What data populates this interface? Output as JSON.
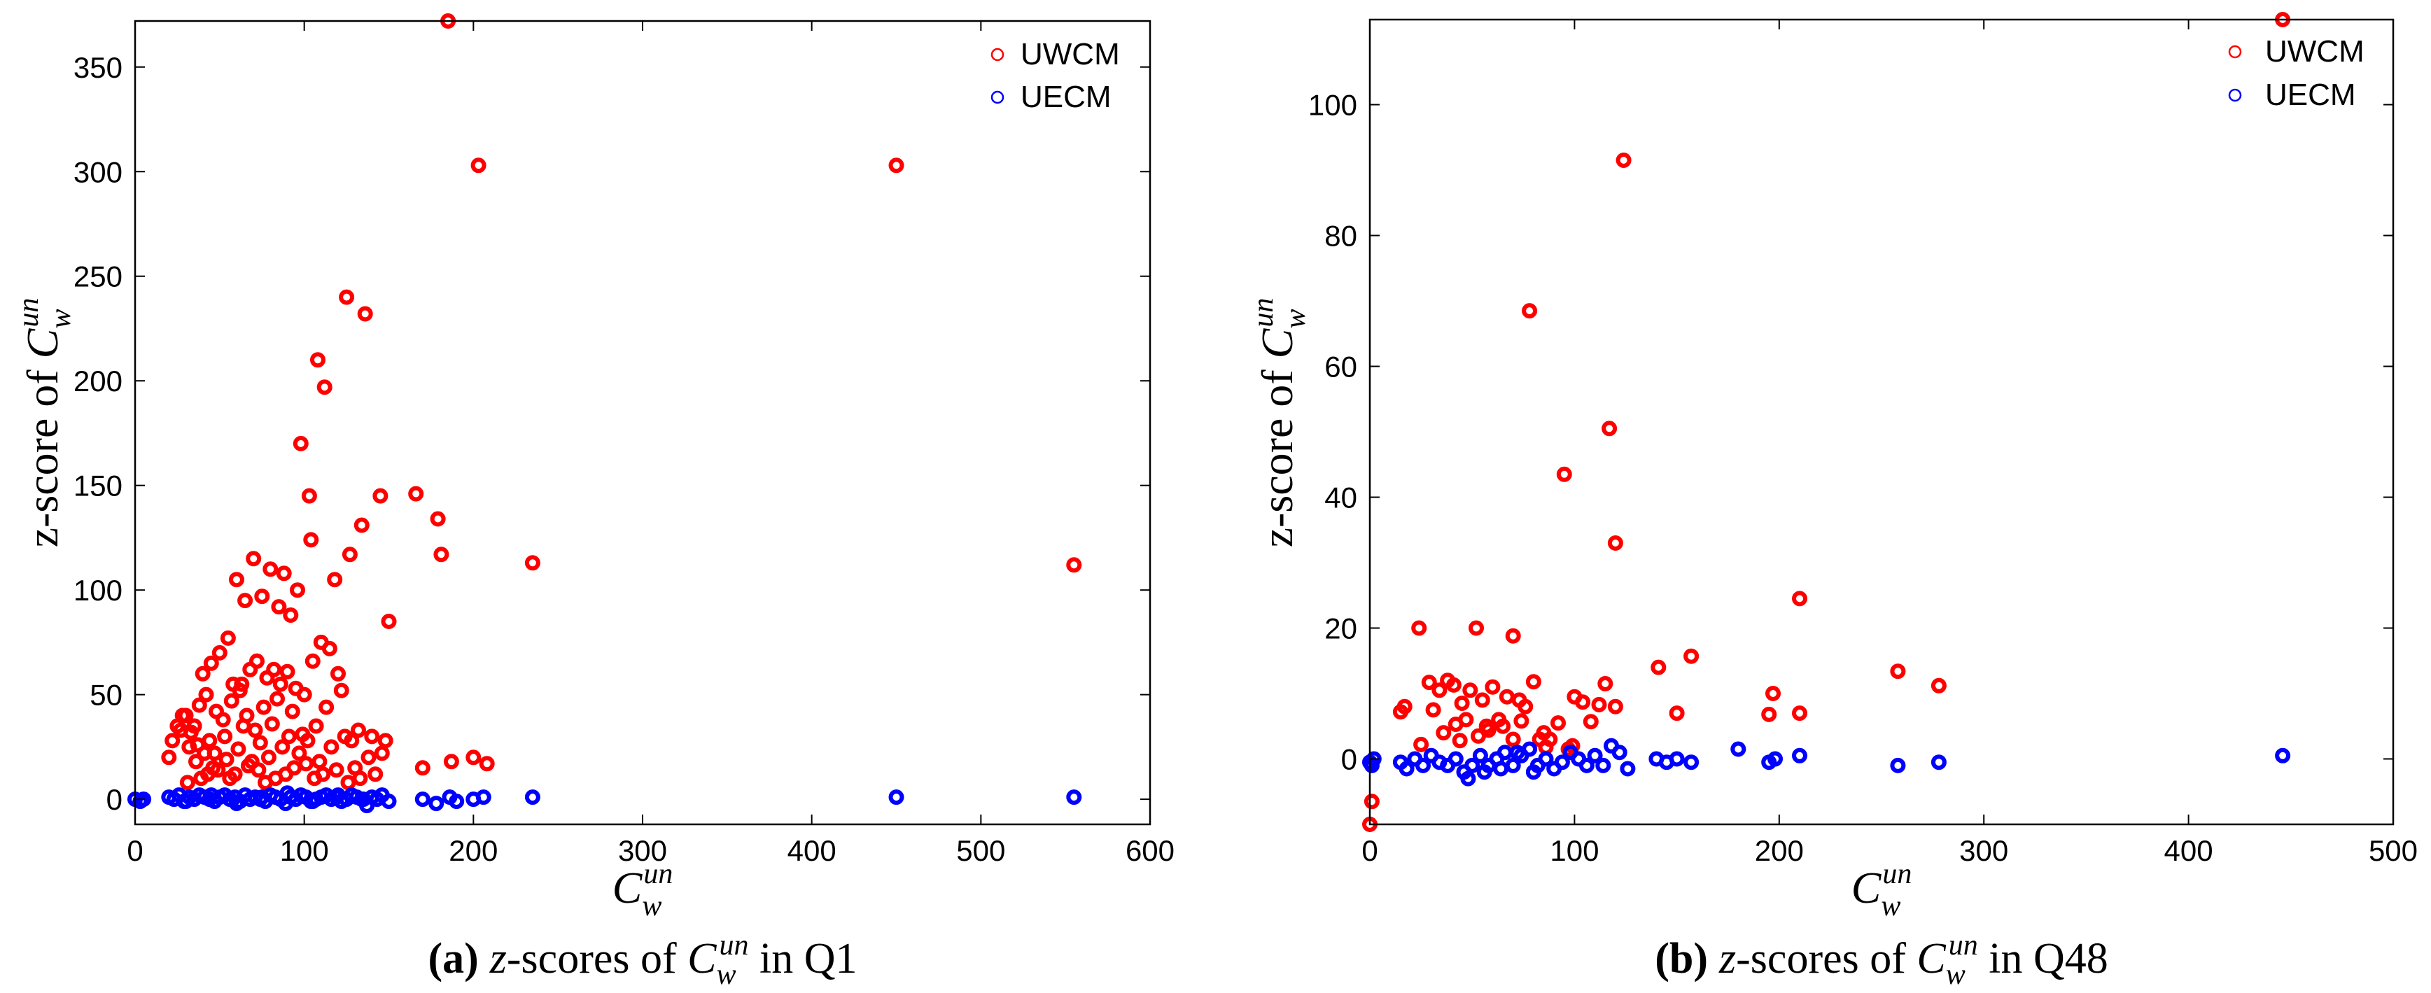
{
  "colors": {
    "uwcm": "#ff0000",
    "uecm": "#0000ff",
    "axis": "#000000"
  },
  "chart_data": [
    {
      "type": "scatter",
      "xlabel_base": "C",
      "xlabel_sub": "w",
      "xlabel_sup": "un",
      "ylabel_prefix": "z-score of ",
      "ylabel_base": "C",
      "ylabel_sub": "w",
      "ylabel_sup": "un",
      "caption_tag": "(a)",
      "caption_z": "z",
      "caption_mid": "-scores of ",
      "caption_base": "C",
      "caption_sub": "w",
      "caption_sup": "un",
      "caption_tail": " in Q1",
      "xlim": [
        0,
        600
      ],
      "ylim": [
        -12,
        372
      ],
      "xticks": [
        0,
        100,
        200,
        300,
        400,
        500,
        600
      ],
      "yticks": [
        0,
        50,
        100,
        150,
        200,
        250,
        300,
        350
      ],
      "legend": [
        "UWCM",
        "UECM"
      ],
      "series": [
        {
          "name": "UWCM",
          "x": [
            185,
            203,
            450,
            125,
            136,
            108,
            112,
            98,
            103,
            166,
            145,
            179,
            134,
            181,
            235,
            555,
            150,
            70,
            80,
            88,
            96,
            118,
            127,
            60,
            104,
            75,
            65,
            85,
            92,
            110,
            55,
            40,
            45,
            50,
            58,
            62,
            68,
            72,
            78,
            82,
            86,
            90,
            95,
            100,
            105,
            115,
            120,
            30,
            35,
            38,
            42,
            48,
            52,
            57,
            63,
            66,
            71,
            76,
            81,
            84,
            93,
            99,
            107,
            113,
            122,
            128,
            132,
            140,
            146,
            25,
            28,
            33,
            37,
            44,
            47,
            53,
            61,
            64,
            69,
            74,
            79,
            87,
            91,
            97,
            102,
            109,
            116,
            124,
            130,
            138,
            148,
            170,
            187,
            200,
            208,
            20,
            22,
            27,
            32,
            36,
            41,
            46,
            54,
            59,
            67,
            73,
            83,
            89,
            94,
            101,
            106,
            111,
            119,
            126,
            133,
            142,
            31,
            39,
            43,
            49,
            56,
            77
          ],
          "y": [
            372,
            303,
            303,
            240,
            232,
            210,
            197,
            170,
            145,
            146,
            145,
            134,
            131,
            117,
            113,
            112,
            85,
            115,
            110,
            108,
            100,
            105,
            117,
            105,
            124,
            97,
            95,
            92,
            88,
            75,
            77,
            60,
            65,
            70,
            55,
            52,
            62,
            66,
            58,
            62,
            55,
            61,
            53,
            50,
            66,
            72,
            60,
            40,
            35,
            45,
            50,
            42,
            38,
            47,
            55,
            40,
            33,
            44,
            36,
            48,
            42,
            31,
            35,
            44,
            52,
            28,
            33,
            30,
            22,
            35,
            40,
            32,
            26,
            28,
            22,
            30,
            24,
            35,
            18,
            27,
            20,
            25,
            30,
            22,
            28,
            18,
            25,
            30,
            15,
            20,
            28,
            15,
            18,
            20,
            17,
            20,
            28,
            33,
            25,
            18,
            22,
            15,
            19,
            12,
            16,
            14,
            10,
            12,
            15,
            17,
            10,
            12,
            14,
            8,
            10,
            12,
            8,
            10,
            12,
            14,
            10,
            8
          ]
        },
        {
          "name": "UECM",
          "x": [
            0,
            3,
            5,
            20,
            23,
            26,
            29,
            32,
            35,
            38,
            41,
            44,
            47,
            50,
            53,
            56,
            59,
            62,
            65,
            68,
            71,
            74,
            77,
            80,
            83,
            86,
            89,
            92,
            95,
            98,
            101,
            104,
            107,
            110,
            113,
            116,
            119,
            122,
            125,
            128,
            131,
            134,
            137,
            140,
            143,
            146,
            150,
            170,
            178,
            186,
            190,
            200,
            206,
            235,
            450,
            555,
            30,
            45,
            60,
            75,
            90,
            105,
            120,
            135
          ],
          "y": [
            0,
            -1,
            0,
            1,
            0,
            2,
            -1,
            1,
            0,
            2,
            1,
            0,
            -1,
            1,
            2,
            0,
            1,
            -1,
            2,
            0,
            1,
            0,
            -1,
            2,
            1,
            0,
            -2,
            1,
            0,
            2,
            1,
            -1,
            0,
            1,
            2,
            0,
            1,
            -1,
            0,
            2,
            1,
            0,
            -3,
            1,
            0,
            2,
            -1,
            0,
            -2,
            1,
            -1,
            0,
            1,
            1,
            1,
            1,
            -1,
            2,
            -2,
            1,
            3,
            -1,
            2,
            0
          ]
        }
      ]
    },
    {
      "type": "scatter",
      "xlabel_base": "C",
      "xlabel_sub": "w",
      "xlabel_sup": "un",
      "ylabel_prefix": "z-score of ",
      "ylabel_base": "C",
      "ylabel_sub": "w",
      "ylabel_sup": "un",
      "caption_tag": "(b)",
      "caption_z": "z",
      "caption_mid": "-scores of ",
      "caption_base": "C",
      "caption_sub": "w",
      "caption_sup": "un",
      "caption_tail": " in Q48",
      "xlim": [
        0,
        500
      ],
      "ylim": [
        -10,
        113
      ],
      "xticks": [
        0,
        100,
        200,
        300,
        400,
        500
      ],
      "yticks": [
        0,
        20,
        40,
        60,
        80,
        100
      ],
      "legend": [
        "UWCM",
        "UECM"
      ],
      "series": [
        {
          "name": "UWCM",
          "x": [
            446,
            124,
            78,
            117,
            95,
            120,
            210,
            24,
            52,
            70,
            157,
            258,
            278,
            100,
            141,
            197,
            112,
            150,
            210,
            195,
            17,
            15,
            29,
            34,
            38,
            41,
            45,
            49,
            55,
            60,
            63,
            67,
            73,
            76,
            80,
            85,
            88,
            92,
            104,
            108,
            115,
            120,
            31,
            36,
            42,
            47,
            53,
            57,
            65,
            70,
            83,
            97,
            99,
            0,
            1,
            25,
            44,
            58,
            74,
            86
          ],
          "y": [
            113,
            91.5,
            68.5,
            50.5,
            43.5,
            33,
            24.5,
            20,
            20,
            18.8,
            15.7,
            13.4,
            11.2,
            9.5,
            14,
            10,
            8.3,
            7,
            7,
            6.8,
            8,
            7.2,
            11.7,
            10.5,
            12,
            11.3,
            8.5,
            10.5,
            9,
            11,
            6,
            9.5,
            9,
            8,
            11.8,
            4,
            3,
            5.5,
            8.7,
            5.7,
            11.5,
            8,
            7.5,
            4,
            5.3,
            6,
            3.5,
            5,
            5,
            3,
            3,
            1.5,
            2,
            -10,
            -6.5,
            2.2,
            2.8,
            4.4,
            5.8,
            1.8
          ]
        },
        {
          "name": "UECM",
          "x": [
            0,
            1,
            2,
            15,
            18,
            22,
            26,
            30,
            34,
            38,
            42,
            46,
            50,
            54,
            58,
            62,
            66,
            70,
            74,
            78,
            82,
            86,
            90,
            94,
            98,
            102,
            106,
            110,
            114,
            118,
            122,
            126,
            140,
            145,
            150,
            157,
            180,
            195,
            198,
            210,
            258,
            278,
            446,
            48,
            56,
            64,
            72,
            80
          ],
          "y": [
            -0.5,
            -1,
            0,
            -0.5,
            -1.5,
            0,
            -1,
            0.5,
            -0.5,
            -1,
            0,
            -2,
            -1,
            0.5,
            -1,
            0,
            1,
            -1,
            0.5,
            1.5,
            -1,
            0,
            -1.5,
            -0.5,
            1,
            0,
            -1,
            0.5,
            -1,
            2,
            1,
            -1.5,
            0,
            -0.5,
            0,
            -0.5,
            1.5,
            -0.5,
            0,
            0.5,
            -1,
            -0.5,
            0.5,
            -3,
            -2,
            -1.5,
            1,
            -2
          ]
        }
      ]
    }
  ]
}
